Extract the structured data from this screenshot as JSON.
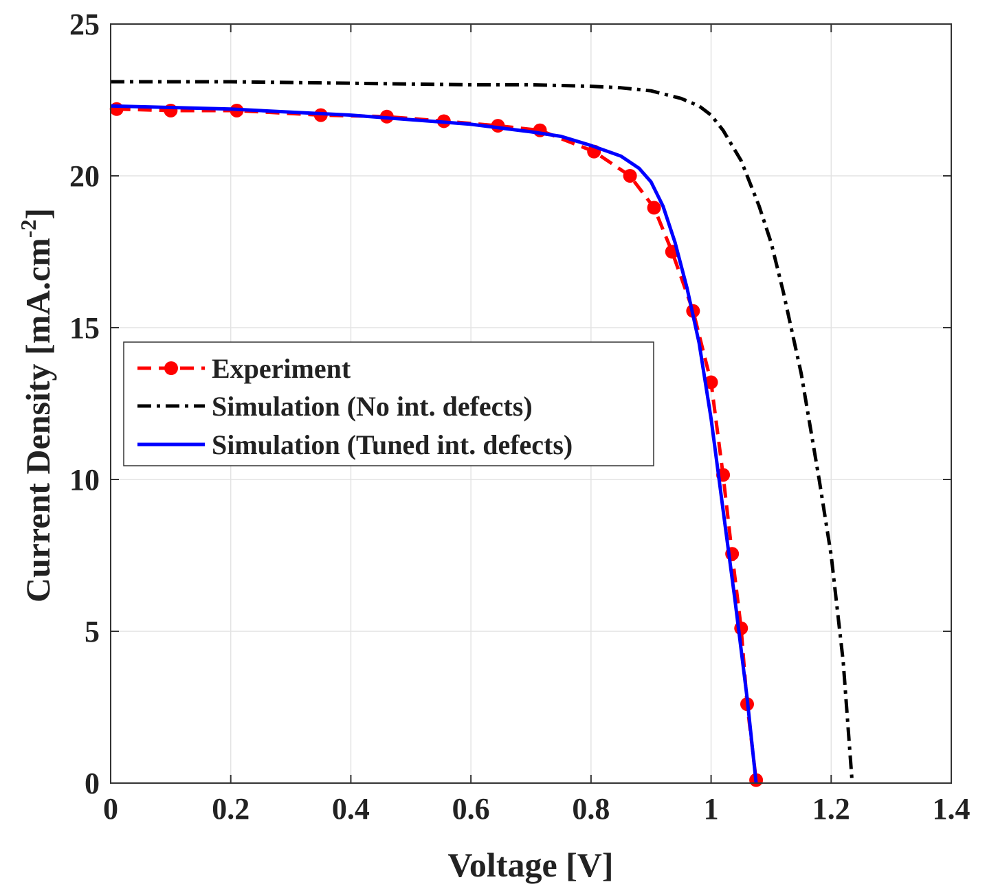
{
  "chart_data": {
    "type": "line",
    "title": "",
    "xlabel": "Voltage [V]",
    "ylabel": "Current Density [mA.cm",
    "ylabel_superscript": "-2",
    "ylabel_close": "]",
    "xlim": [
      0,
      1.4
    ],
    "ylim": [
      0,
      25
    ],
    "xticks": [
      0,
      0.2,
      0.4,
      0.6,
      0.8,
      1,
      1.2,
      1.4
    ],
    "xtick_labels": [
      "0",
      "0.2",
      "0.4",
      "0.6",
      "0.8",
      "1",
      "1.2",
      "1.4"
    ],
    "yticks": [
      0,
      5,
      10,
      15,
      20,
      25
    ],
    "ytick_labels": [
      "0",
      "5",
      "10",
      "15",
      "20",
      "25"
    ],
    "grid": true,
    "legend_position": "center-left",
    "series": [
      {
        "name": "Experiment",
        "color": "#ff0000",
        "line_style": "dashed",
        "marker": "circle",
        "x": [
          0.01,
          0.1,
          0.21,
          0.35,
          0.46,
          0.555,
          0.645,
          0.715,
          0.805,
          0.865,
          0.905,
          0.935,
          0.97,
          1.0,
          1.02,
          1.035,
          1.05,
          1.06,
          1.075
        ],
        "y": [
          22.2,
          22.15,
          22.15,
          22.0,
          21.95,
          21.8,
          21.65,
          21.5,
          20.8,
          20.0,
          18.95,
          17.5,
          15.55,
          13.2,
          10.15,
          7.55,
          5.1,
          2.6,
          0.1
        ]
      },
      {
        "name": "Simulation (No int. defects)",
        "color": "#000000",
        "line_style": "dashdot",
        "x": [
          0,
          0.2,
          0.4,
          0.6,
          0.7,
          0.8,
          0.85,
          0.9,
          0.95,
          0.98,
          1.0,
          1.02,
          1.05,
          1.08,
          1.1,
          1.12,
          1.15,
          1.18,
          1.2,
          1.22,
          1.235
        ],
        "y": [
          23.1,
          23.1,
          23.05,
          23.0,
          23.0,
          22.95,
          22.9,
          22.8,
          22.55,
          22.3,
          22.0,
          21.5,
          20.5,
          19.0,
          17.8,
          16.2,
          13.5,
          10.0,
          7.5,
          4.0,
          0.0
        ]
      },
      {
        "name": "Simulation (Tuned int. defects)",
        "color": "#0000ff",
        "line_style": "solid",
        "x": [
          0,
          0.1,
          0.2,
          0.3,
          0.4,
          0.5,
          0.6,
          0.7,
          0.75,
          0.8,
          0.85,
          0.88,
          0.9,
          0.92,
          0.94,
          0.96,
          0.98,
          1.0,
          1.02,
          1.04,
          1.06,
          1.075
        ],
        "y": [
          22.3,
          22.25,
          22.2,
          22.1,
          22.0,
          21.85,
          21.7,
          21.45,
          21.3,
          21.0,
          20.65,
          20.25,
          19.8,
          19.0,
          17.8,
          16.3,
          14.5,
          12.0,
          9.0,
          6.0,
          2.8,
          0.0
        ]
      }
    ]
  }
}
